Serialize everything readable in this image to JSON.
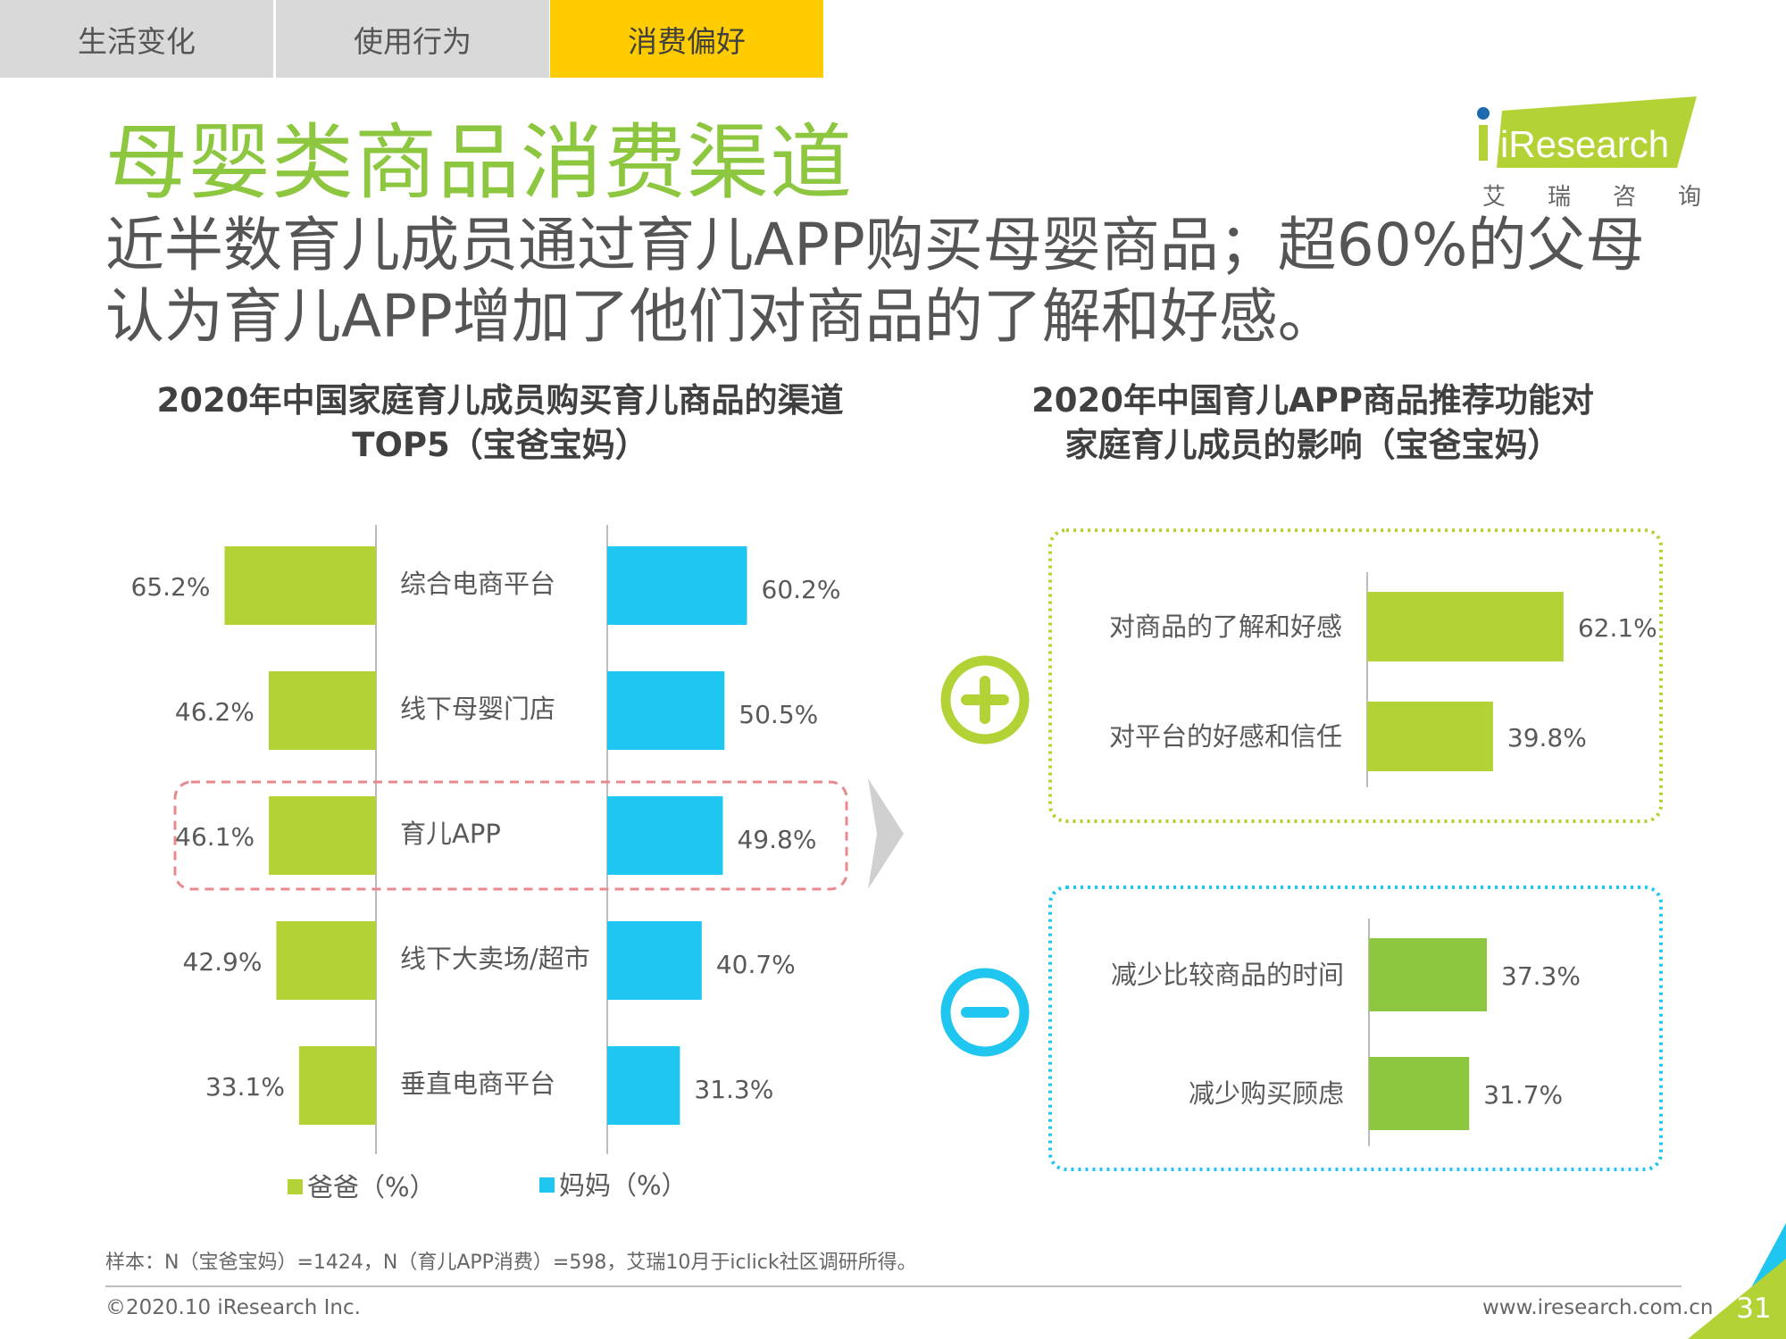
{
  "tabs": [
    {
      "label": "生活变化",
      "active": false
    },
    {
      "label": "使用行为",
      "active": false
    },
    {
      "label": "消费偏好",
      "active": true
    }
  ],
  "page_title": "母婴类商品消费渠道",
  "subtitle": "近半数育儿成员通过育儿APP购买母婴商品；超60%的父母认为育儿APP增加了他们对商品的了解和好感。",
  "logo": {
    "wordmark": "iResearch",
    "chinese": [
      "艾",
      "瑞",
      "咨",
      "询"
    ]
  },
  "colors": {
    "green": "#b2d235",
    "blue": "#1ec6f0",
    "green_dark": "#8dc63f",
    "pink_dash": "#e8898d"
  },
  "chart_data": [
    {
      "type": "bar",
      "title": "2020年中国家庭育儿成员购买育儿商品的渠道TOP5（宝爸宝妈）",
      "title_lines": [
        "2020年中国家庭育儿成员购买育儿商品的渠道",
        "TOP5（宝爸宝妈）"
      ],
      "categories": [
        "综合电商平台",
        "线下母婴门店",
        "育儿APP",
        "线下大卖场/超市",
        "垂直电商平台"
      ],
      "series": [
        {
          "name": "爸爸（%）",
          "values": [
            65.2,
            46.2,
            46.1,
            42.9,
            33.1
          ],
          "labels": [
            "65.2%",
            "46.2%",
            "46.1%",
            "42.9%",
            "33.1%"
          ],
          "color": "#b2d235"
        },
        {
          "name": "妈妈（%）",
          "values": [
            60.2,
            50.5,
            49.8,
            40.7,
            31.3
          ],
          "labels": [
            "60.2%",
            "50.5%",
            "49.8%",
            "40.7%",
            "31.3%"
          ],
          "color": "#1ec6f0"
        }
      ],
      "highlight_category": "育儿APP",
      "legend": "bottom"
    },
    {
      "type": "bar",
      "title": "2020年中国育儿APP商品推荐功能对家庭育儿成员的影响（宝爸宝妈）",
      "title_lines": [
        "2020年中国育儿APP商品推荐功能对",
        "家庭育儿成员的影响（宝爸宝妈）"
      ],
      "groups": [
        {
          "symbol": "plus",
          "color": "#b2d235",
          "categories": [
            "对商品的了解和好感",
            "对平台的好感和信任"
          ],
          "values": [
            62.1,
            39.8
          ],
          "labels": [
            "62.1%",
            "39.8%"
          ]
        },
        {
          "symbol": "minus",
          "color": "#8dc63f",
          "categories": [
            "减少比较商品的时间",
            "减少购买顾虑"
          ],
          "values": [
            37.3,
            31.7
          ],
          "labels": [
            "37.3%",
            "31.7%"
          ]
        }
      ]
    }
  ],
  "footnote": "样本：N（宝爸宝妈）=1424，N（育儿APP消费）=598，艾瑞10月于iclick社区调研所得。",
  "copyright": "©2020.10 iResearch Inc.",
  "website": "www.iresearch.com.cn",
  "page_number": "31"
}
